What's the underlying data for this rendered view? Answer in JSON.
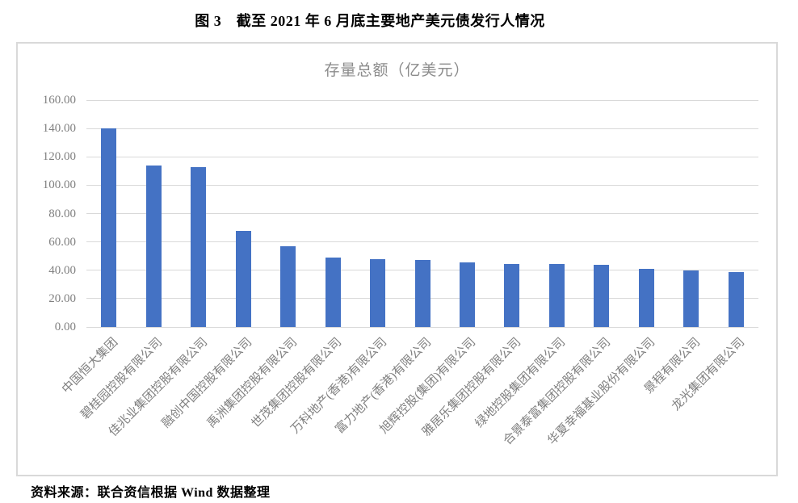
{
  "page": {
    "title": "图 3　截至 2021 年 6 月底主要地产美元债发行人情况",
    "source_note": "资料来源：联合资信根据 Wind 数据整理"
  },
  "chart_data": {
    "type": "bar",
    "title": "存量总额（亿美元）",
    "categories": [
      "中国恒大集团",
      "碧桂园控股有限公司",
      "佳兆业集团控股有限公司",
      "融创中国控股有限公司",
      "禹洲集团控股有限公司",
      "世茂集团控股有限公司",
      "万科地产(香港)有限公司",
      "富力地产(香港)有限公司",
      "旭辉控股(集团)有限公司",
      "雅居乐集团控股有限公司",
      "绿地控股集团有限公司",
      "合景泰富集团控股有限公司",
      "华夏幸福基业股份有限公司",
      "景程有限公司",
      "龙光集团有限公司"
    ],
    "values": [
      140,
      114,
      113,
      68,
      57,
      49,
      48,
      47,
      45.5,
      44.5,
      44.5,
      44,
      41,
      40,
      39
    ],
    "xlabel": "",
    "ylabel": "",
    "ylim": [
      0,
      160
    ],
    "y_tick_step": 20,
    "y_ticks": [
      "0.00",
      "20.00",
      "40.00",
      "60.00",
      "80.00",
      "100.00",
      "120.00",
      "140.00",
      "160.00"
    ],
    "grid": true,
    "legend_position": "none",
    "colors": {
      "bar": "#4472C4",
      "gridline": "#D9D9D9",
      "chart_border": "#D9D9D9",
      "axis_label": "#808080",
      "chart_title": "#8C8C8C"
    }
  }
}
